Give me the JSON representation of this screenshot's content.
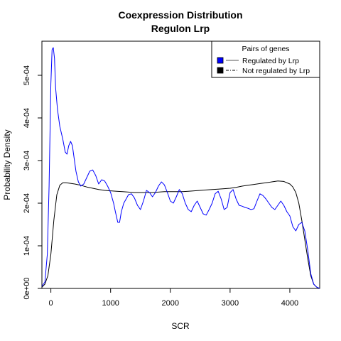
{
  "chart_data": {
    "type": "line",
    "title": "Coexpression Distribution",
    "subtitle": "Regulon Lrp",
    "xlabel": "SCR",
    "ylabel": "Probability Density",
    "xlim": [
      -150,
      4500
    ],
    "ylim": [
      0,
      0.00058
    ],
    "x_ticks": [
      0,
      1000,
      2000,
      3000,
      4000
    ],
    "x_tick_labels": [
      "0",
      "1000",
      "2000",
      "3000",
      "4000"
    ],
    "y_ticks": [
      0,
      0.0001,
      0.0002,
      0.0003,
      0.0004,
      0.0005
    ],
    "y_tick_labels": [
      "0e+00",
      "1e-04",
      "2e-04",
      "3e-04",
      "4e-04",
      "5e-04"
    ],
    "grid": false,
    "legend": {
      "title": "Pairs of genes",
      "position": "top-right"
    },
    "series": [
      {
        "name": "Regulated by  Lrp",
        "color": "#0000ff",
        "x": [
          -150,
          -100,
          -60,
          -30,
          0,
          20,
          40,
          60,
          80,
          110,
          150,
          200,
          240,
          270,
          300,
          330,
          360,
          390,
          420,
          460,
          500,
          550,
          600,
          650,
          700,
          750,
          800,
          850,
          900,
          950,
          1000,
          1050,
          1080,
          1120,
          1150,
          1180,
          1220,
          1260,
          1300,
          1350,
          1400,
          1450,
          1500,
          1550,
          1600,
          1650,
          1700,
          1750,
          1800,
          1850,
          1900,
          1950,
          2000,
          2050,
          2100,
          2150,
          2200,
          2250,
          2300,
          2350,
          2400,
          2450,
          2500,
          2550,
          2600,
          2650,
          2700,
          2750,
          2800,
          2850,
          2900,
          2950,
          3000,
          3050,
          3100,
          3150,
          3200,
          3250,
          3300,
          3350,
          3400,
          3450,
          3500,
          3550,
          3600,
          3650,
          3700,
          3750,
          3800,
          3850,
          3900,
          3950,
          4000,
          4050,
          4100,
          4150,
          4200,
          4250,
          4300,
          4350,
          4400,
          4450,
          4500
        ],
        "y": [
          5e-06,
          1.5e-05,
          8e-05,
          0.00024,
          0.00048,
          0.00056,
          0.000565,
          0.00054,
          0.00047,
          0.00042,
          0.00038,
          0.00035,
          0.00032,
          0.000315,
          0.000335,
          0.000345,
          0.000335,
          0.000305,
          0.000275,
          0.00025,
          0.00024,
          0.000245,
          0.00026,
          0.000275,
          0.000278,
          0.000265,
          0.000245,
          0.000255,
          0.000252,
          0.00024,
          0.000225,
          0.0002,
          0.00018,
          0.000155,
          0.000155,
          0.00018,
          0.0002,
          0.00021,
          0.00022,
          0.000222,
          0.000212,
          0.000195,
          0.000185,
          0.000205,
          0.00023,
          0.000225,
          0.000215,
          0.000225,
          0.00024,
          0.00025,
          0.000243,
          0.000225,
          0.000205,
          0.0002,
          0.000215,
          0.000232,
          0.000222,
          0.0002,
          0.000185,
          0.00018,
          0.000195,
          0.000205,
          0.00019,
          0.000175,
          0.000172,
          0.000185,
          0.0002,
          0.000222,
          0.000228,
          0.00021,
          0.000185,
          0.00019,
          0.000225,
          0.000232,
          0.00021,
          0.000195,
          0.000193,
          0.00019,
          0.000188,
          0.000185,
          0.000187,
          0.000205,
          0.000222,
          0.000218,
          0.00021,
          0.0002,
          0.00019,
          0.000185,
          0.000195,
          0.000205,
          0.000195,
          0.00018,
          0.00017,
          0.000145,
          0.000135,
          0.00015,
          0.000155,
          0.000135,
          9e-05,
          3.5e-05,
          1e-05,
          3e-06,
          0.0
        ],
        "style": "solid"
      },
      {
        "name": "Not regulated by  Lrp",
        "color": "#000000",
        "x": [
          -150,
          -100,
          -50,
          0,
          50,
          100,
          150,
          200,
          250,
          300,
          400,
          500,
          600,
          700,
          800,
          900,
          1000,
          1100,
          1200,
          1300,
          1400,
          1500,
          1600,
          1700,
          1800,
          1900,
          2000,
          2100,
          2200,
          2300,
          2400,
          2500,
          2600,
          2700,
          2800,
          2900,
          3000,
          3100,
          3200,
          3300,
          3400,
          3500,
          3600,
          3700,
          3800,
          3900,
          4000,
          4050,
          4100,
          4150,
          4200,
          4250,
          4300,
          4350,
          4400,
          4450,
          4500
        ],
        "y": [
          3e-06,
          1e-05,
          3e-05,
          8e-05,
          0.00016,
          0.00022,
          0.000242,
          0.000248,
          0.000248,
          0.000247,
          0.000245,
          0.000242,
          0.000238,
          0.000235,
          0.000232,
          0.00023,
          0.000229,
          0.000228,
          0.000227,
          0.000226,
          0.000225,
          0.000225,
          0.000225,
          0.000225,
          0.000226,
          0.000227,
          0.000227,
          0.000227,
          0.000227,
          0.000228,
          0.000229,
          0.00023,
          0.000231,
          0.000232,
          0.000233,
          0.000234,
          0.000235,
          0.000237,
          0.00024,
          0.000242,
          0.000244,
          0.000246,
          0.000248,
          0.00025,
          0.000252,
          0.000251,
          0.000245,
          0.000238,
          0.000225,
          0.0002,
          0.00016,
          0.000115,
          7e-05,
          3e-05,
          1e-05,
          3e-06,
          0.0
        ],
        "style": "solid"
      }
    ]
  }
}
